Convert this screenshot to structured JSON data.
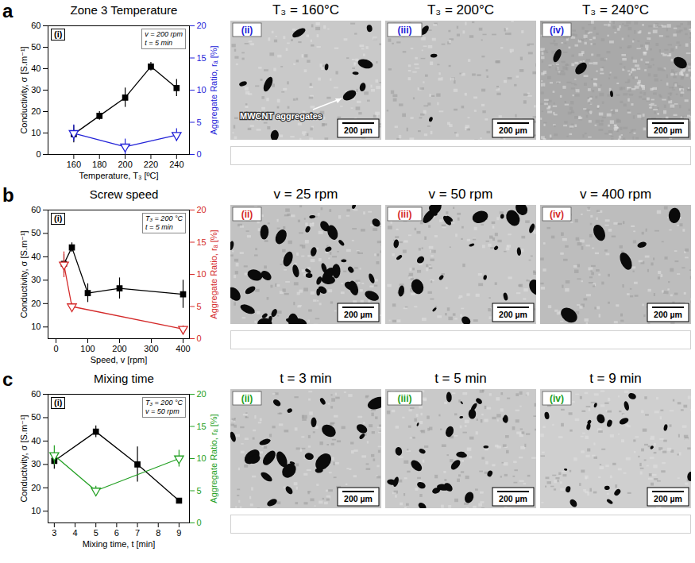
{
  "chart_data": [
    {
      "type": "line",
      "panel": "a",
      "title": "Zone 3 Temperature",
      "label": "(i)",
      "annotations": [
        "v = 200 rpm",
        "t = 5 min"
      ],
      "xlabel": "Temperature, T₃ [ºC]",
      "ylabel": "Conductivity, σ [S.m⁻¹]",
      "y2label": "Aggregate Ratio, rₐ [%]",
      "x": [
        160,
        180,
        200,
        220,
        240
      ],
      "series": [
        {
          "color": "#000000",
          "marker": "square",
          "values": [
            9.5,
            18,
            26.5,
            41,
            31
          ],
          "errors": [
            4,
            2,
            4.5,
            2,
            4
          ]
        },
        {
          "axis": "y2",
          "color": "#2323d8",
          "marker": "triangle-down-open",
          "x": [
            160,
            200,
            240
          ],
          "values": [
            3.3,
            1.2,
            3
          ],
          "errors": [
            1.3,
            1.2,
            1
          ]
        }
      ],
      "xlim": [
        140,
        250
      ],
      "xticks": [
        160,
        180,
        200,
        220,
        240
      ],
      "ylim": [
        0,
        60
      ],
      "yticks": [
        0,
        10,
        20,
        30,
        40,
        50,
        60
      ],
      "y2lim": [
        0,
        20
      ],
      "y2ticks": [
        0,
        5,
        10,
        15,
        20
      ],
      "grid": false,
      "micrographs": [
        {
          "label": "(ii)",
          "title": "T₃ = 160°C",
          "scale_bar": "200 µm",
          "annotation": "MWCNT aggregates"
        },
        {
          "label": "(iii)",
          "title": "T₃ = 200°C",
          "scale_bar": "200 µm"
        },
        {
          "label": "(iv)",
          "title": "T₃ = 240°C",
          "scale_bar": "200 µm"
        }
      ]
    },
    {
      "type": "line",
      "panel": "b",
      "title": "Screw speed",
      "label": "(i)",
      "annotations": [
        "T₃ = 200 °C",
        "t = 5 min"
      ],
      "xlabel": "Speed, v [rpm]",
      "ylabel": "Conductivity, σ [S.m⁻¹]",
      "y2label": "Aggregate Ratio, rₐ [%]",
      "x": [
        25,
        50,
        100,
        200,
        400
      ],
      "series": [
        {
          "color": "#000000",
          "marker": "square",
          "values": [
            37,
            44,
            24.5,
            26.5,
            24
          ],
          "errors": [
            4,
            2,
            4,
            4.5,
            6
          ]
        },
        {
          "axis": "y2",
          "color": "#d42a2a",
          "marker": "triangle-down-open",
          "x": [
            25,
            50,
            400
          ],
          "values": [
            11.5,
            5,
            1.5
          ],
          "errors": [
            2,
            0.5,
            0.5
          ]
        }
      ],
      "xlim": [
        -25,
        420
      ],
      "xticks": [
        0,
        100,
        200,
        300,
        400
      ],
      "ylim": [
        5,
        60
      ],
      "yticks": [
        10,
        20,
        30,
        40,
        50,
        60
      ],
      "y2lim": [
        0,
        20
      ],
      "y2ticks": [
        0,
        5,
        10,
        15,
        20
      ],
      "grid": false,
      "micrographs": [
        {
          "label": "(ii)",
          "title": "v = 25 rpm",
          "scale_bar": "200 µm"
        },
        {
          "label": "(iii)",
          "title": "v = 50 rpm",
          "scale_bar": "200 µm"
        },
        {
          "label": "(iv)",
          "title": "v = 400 rpm",
          "scale_bar": "200 µm"
        }
      ]
    },
    {
      "type": "line",
      "panel": "c",
      "title": "Mixing time",
      "label": "(i)",
      "annotations": [
        "T₃ = 200 °C",
        "v = 50 rpm"
      ],
      "xlabel": "Mixing time, t [min]",
      "ylabel": "Conductivity, σ [S.m⁻¹]",
      "y2label": "Aggregate Ratio, rₐ [%]",
      "x": [
        3,
        5,
        7,
        9
      ],
      "series": [
        {
          "color": "#000000",
          "marker": "square",
          "values": [
            31.5,
            44,
            30,
            14.5
          ],
          "errors": [
            3.5,
            2.5,
            7.5,
            1
          ]
        },
        {
          "axis": "y2",
          "color": "#23a023",
          "marker": "triangle-down-open",
          "x": [
            3,
            5,
            9
          ],
          "values": [
            10.5,
            5,
            10
          ],
          "errors": [
            1.5,
            0.7,
            1.3
          ]
        }
      ],
      "xlim": [
        2.7,
        9.5
      ],
      "xticks": [
        3,
        4,
        5,
        6,
        7,
        8,
        9
      ],
      "ylim": [
        5,
        60
      ],
      "yticks": [
        10,
        20,
        30,
        40,
        50,
        60
      ],
      "y2lim": [
        0,
        20
      ],
      "y2ticks": [
        0,
        5,
        10,
        15,
        20
      ],
      "grid": false,
      "micrographs": [
        {
          "label": "(ii)",
          "title": "t = 3 min",
          "scale_bar": "200 µm"
        },
        {
          "label": "(iii)",
          "title": "t = 5 min",
          "scale_bar": "200 µm"
        },
        {
          "label": "(iv)",
          "title": "t = 9 min",
          "scale_bar": "200 µm"
        }
      ]
    }
  ]
}
